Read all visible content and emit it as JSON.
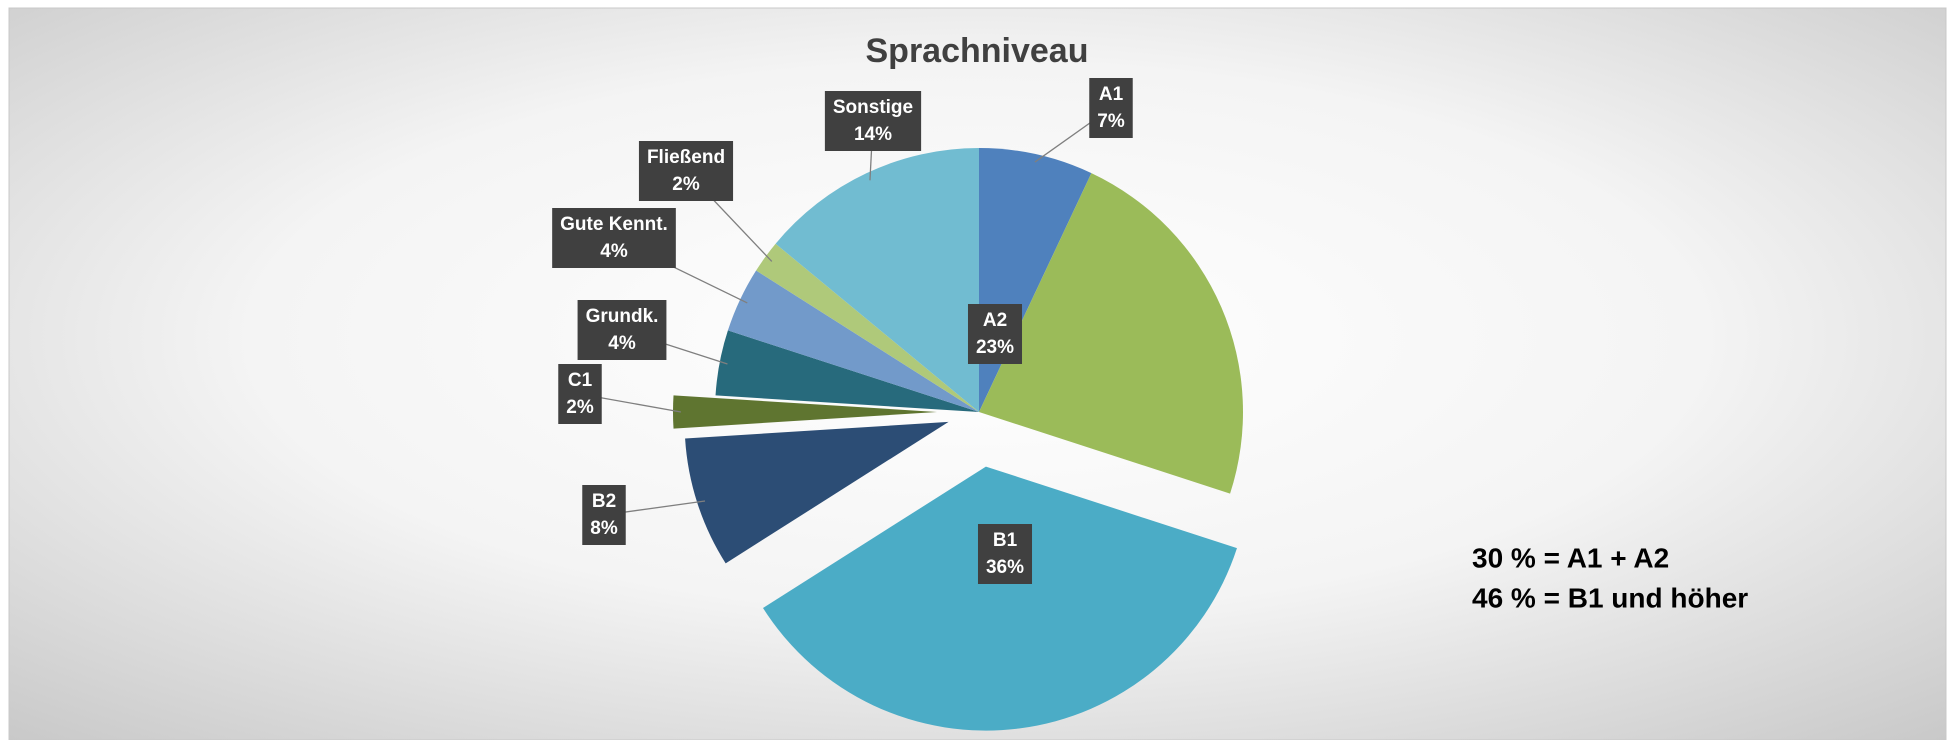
{
  "chart_data": {
    "type": "pie",
    "title": "Sprachniveau",
    "categories": [
      "A1",
      "A2",
      "B1",
      "B2",
      "C1",
      "Grundk.",
      "Gute Kennt.",
      "Fließend",
      "Sonstige"
    ],
    "values": [
      7,
      23,
      36,
      8,
      2,
      4,
      4,
      2,
      14
    ],
    "value_labels": [
      "7%",
      "23%",
      "36%",
      "8%",
      "2%",
      "4%",
      "4%",
      "2%",
      "14%"
    ],
    "colors": [
      "#4f81bd",
      "#9bbb59",
      "#4bacc6",
      "#2c4d75",
      "#5f7530",
      "#276a7c",
      "#729aca",
      "#afc97a",
      "#71bcd1"
    ],
    "annotations": [
      "30 % = A1 + A2",
      "46 % = B1 und höher"
    ]
  }
}
